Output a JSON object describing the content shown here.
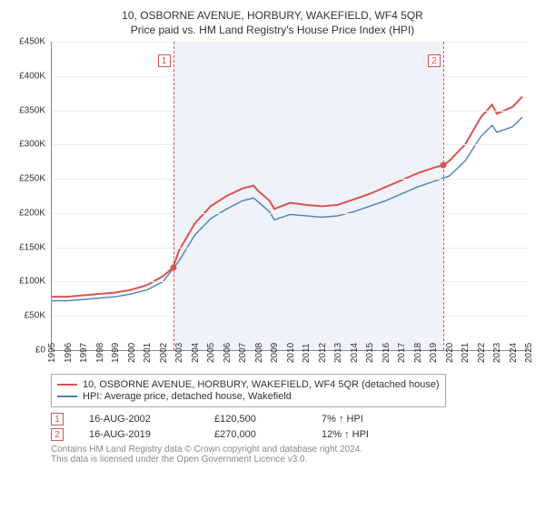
{
  "title": "10, OSBORNE AVENUE, HORBURY, WAKEFIELD, WF4 5QR",
  "subtitle": "Price paid vs. HM Land Registry's House Price Index (HPI)",
  "chart": {
    "type": "line",
    "ylim": [
      0,
      450000
    ],
    "ytick_step": 50000,
    "ytick_format_prefix": "£",
    "y_ticks": [
      "£0",
      "£50K",
      "£100K",
      "£150K",
      "£200K",
      "£250K",
      "£300K",
      "£350K",
      "£400K",
      "£450K"
    ],
    "x_start_year": 1995,
    "x_end_year": 2025,
    "x_ticks_years": [
      1995,
      1996,
      1997,
      1998,
      1999,
      2000,
      2001,
      2002,
      2003,
      2004,
      2005,
      2006,
      2007,
      2008,
      2009,
      2010,
      2011,
      2012,
      2013,
      2014,
      2015,
      2016,
      2017,
      2018,
      2019,
      2020,
      2021,
      2022,
      2023,
      2024,
      2025
    ],
    "background_color": "#ffffff",
    "grid_color": "#eeeeee",
    "shaded_range": {
      "start_year": 2002.63,
      "end_year": 2019.63,
      "fill": "#e8edf6",
      "opacity": 0.7
    },
    "series": [
      {
        "id": "property",
        "label": "10, OSBORNE AVENUE, HORBURY, WAKEFIELD, WF4 5QR (detached house)",
        "color": "#d9534f",
        "width": 2,
        "points": [
          [
            1995,
            78000
          ],
          [
            1996,
            78000
          ],
          [
            1997,
            80000
          ],
          [
            1998,
            82000
          ],
          [
            1999,
            84000
          ],
          [
            2000,
            88000
          ],
          [
            2001,
            95000
          ],
          [
            2002,
            108000
          ],
          [
            2002.63,
            120500
          ],
          [
            2003,
            145000
          ],
          [
            2004,
            185000
          ],
          [
            2005,
            210000
          ],
          [
            2006,
            225000
          ],
          [
            2007,
            236000
          ],
          [
            2007.7,
            240000
          ],
          [
            2008,
            232000
          ],
          [
            2008.7,
            218000
          ],
          [
            2009,
            206000
          ],
          [
            2010,
            215000
          ],
          [
            2011,
            212000
          ],
          [
            2012,
            210000
          ],
          [
            2013,
            212000
          ],
          [
            2014,
            220000
          ],
          [
            2015,
            228000
          ],
          [
            2016,
            238000
          ],
          [
            2017,
            248000
          ],
          [
            2018,
            258000
          ],
          [
            2019,
            266000
          ],
          [
            2019.63,
            270000
          ],
          [
            2020,
            276000
          ],
          [
            2021,
            300000
          ],
          [
            2022,
            340000
          ],
          [
            2022.7,
            358000
          ],
          [
            2023,
            345000
          ],
          [
            2024,
            355000
          ],
          [
            2024.6,
            370000
          ]
        ]
      },
      {
        "id": "hpi",
        "label": "HPI: Average price, detached house, Wakefield",
        "color": "#4a7ebb",
        "width": 1.4,
        "points": [
          [
            1995,
            72000
          ],
          [
            1996,
            72000
          ],
          [
            1997,
            74000
          ],
          [
            1998,
            76000
          ],
          [
            1999,
            78000
          ],
          [
            2000,
            82000
          ],
          [
            2001,
            88000
          ],
          [
            2002,
            100000
          ],
          [
            2003,
            130000
          ],
          [
            2004,
            168000
          ],
          [
            2005,
            192000
          ],
          [
            2006,
            206000
          ],
          [
            2007,
            218000
          ],
          [
            2007.7,
            222000
          ],
          [
            2008,
            216000
          ],
          [
            2008.7,
            202000
          ],
          [
            2009,
            190000
          ],
          [
            2010,
            198000
          ],
          [
            2011,
            196000
          ],
          [
            2012,
            194000
          ],
          [
            2013,
            196000
          ],
          [
            2014,
            202000
          ],
          [
            2015,
            210000
          ],
          [
            2016,
            218000
          ],
          [
            2017,
            228000
          ],
          [
            2018,
            238000
          ],
          [
            2019,
            246000
          ],
          [
            2020,
            254000
          ],
          [
            2021,
            276000
          ],
          [
            2022,
            312000
          ],
          [
            2022.7,
            328000
          ],
          [
            2023,
            318000
          ],
          [
            2024,
            326000
          ],
          [
            2024.6,
            340000
          ]
        ]
      }
    ],
    "sale_markers": [
      {
        "n": "1",
        "year": 2002.63,
        "price": 120500,
        "date": "16-AUG-2002",
        "delta_pct": "7%",
        "delta_dir": "↑",
        "delta_label": "HPI"
      },
      {
        "n": "2",
        "year": 2019.63,
        "price": 270000,
        "date": "16-AUG-2019",
        "delta_pct": "12%",
        "delta_dir": "↑",
        "delta_label": "HPI"
      }
    ],
    "marker_box_color": "#d9534f",
    "dash_color": "#d9534f",
    "axis_fontsize": 10
  },
  "legend": {
    "rows": [
      {
        "color": "#d9534f",
        "text": "10, OSBORNE AVENUE, HORBURY, WAKEFIELD, WF4 5QR (detached house)"
      },
      {
        "color": "#4a7ebb",
        "text": "HPI: Average price, detached house, Wakefield"
      }
    ]
  },
  "sale_table": [
    {
      "n": "1",
      "date": "16-AUG-2002",
      "price": "£120,500",
      "delta": "7% ↑ HPI"
    },
    {
      "n": "2",
      "date": "16-AUG-2019",
      "price": "£270,000",
      "delta": "12% ↑ HPI"
    }
  ],
  "footer_line1": "Contains HM Land Registry data © Crown copyright and database right 2024.",
  "footer_line2": "This data is licensed under the Open Government Licence v3.0."
}
